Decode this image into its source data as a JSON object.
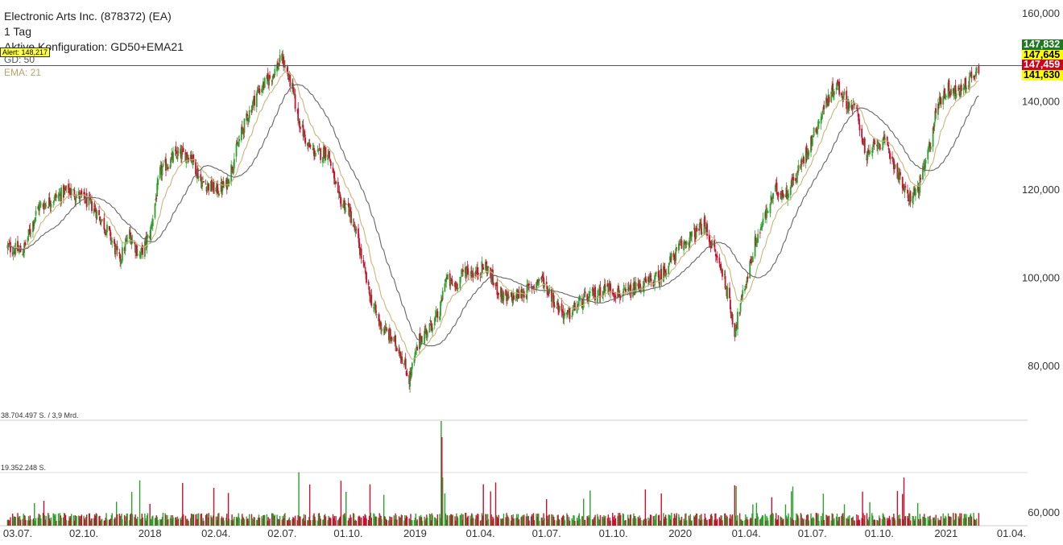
{
  "header": {
    "title": "Electronic Arts Inc. (878372) (EA)",
    "interval": "1 Tag",
    "config": "Aktive Konfiguration: GD50+EMA21",
    "gd_label": "GD: 50",
    "ema_label": "EMA: 21"
  },
  "alert": {
    "label": "Alert: 148,217",
    "value": 148.217
  },
  "price_tags": [
    {
      "label": "147,832",
      "value": 147.832,
      "bg": "#1f7a1f",
      "fg": "#ffffff"
    },
    {
      "label": "147,645",
      "value": 147.645,
      "bg": "#ffff00",
      "fg": "#000000"
    },
    {
      "label": "147,459",
      "value": 147.459,
      "bg": "#d0021b",
      "fg": "#ffffff"
    },
    {
      "label": "141,630",
      "value": 141.63,
      "bg": "#ffff00",
      "fg": "#000000"
    }
  ],
  "volume_labels": {
    "max": "38.704.497 S. / 3,9 Mrd.",
    "mid": "19.352.248 S."
  },
  "colors": {
    "up": "#2ca02c",
    "down": "#c8102e",
    "gd50": "#666666",
    "ema21": "#c8b57c",
    "grid": "#dddddd"
  },
  "chart_data": {
    "type": "candlestick",
    "y_ticks": [
      "160,000",
      "140,000",
      "120,000",
      "100,000",
      "80,000",
      "60,000"
    ],
    "y_tick_values": [
      160,
      140,
      120,
      100,
      80,
      60
    ],
    "x_ticks": [
      "03.07.",
      "02.10.",
      "2018",
      "02.04.",
      "02.07.",
      "01.10.",
      "2019",
      "01.04.",
      "01.07.",
      "01.10.",
      "2020",
      "01.04.",
      "01.07.",
      "01.10.",
      "2021",
      "01.04."
    ],
    "x_tick_dates": [
      "2017-07-03",
      "2017-10-02",
      "2018-01-01",
      "2018-04-02",
      "2018-07-02",
      "2018-10-01",
      "2019-01-01",
      "2019-04-01",
      "2019-07-01",
      "2019-10-01",
      "2020-01-01",
      "2020-04-01",
      "2020-07-01",
      "2020-10-01",
      "2021-01-01",
      "2021-04-01"
    ],
    "price_range": [
      70,
      160
    ],
    "close_path": [
      [
        "2017-06-19",
        107
      ],
      [
        "2017-07-10",
        106
      ],
      [
        "2017-07-31",
        116
      ],
      [
        "2017-08-21",
        118
      ],
      [
        "2017-09-11",
        120
      ],
      [
        "2017-10-02",
        118
      ],
      [
        "2017-10-16",
        116
      ],
      [
        "2017-11-06",
        110
      ],
      [
        "2017-11-20",
        104
      ],
      [
        "2017-12-04",
        110
      ],
      [
        "2017-12-18",
        105
      ],
      [
        "2018-01-01",
        110
      ],
      [
        "2018-01-15",
        124
      ],
      [
        "2018-02-05",
        128
      ],
      [
        "2018-02-26",
        128
      ],
      [
        "2018-03-12",
        122
      ],
      [
        "2018-04-02",
        120
      ],
      [
        "2018-04-16",
        121
      ],
      [
        "2018-05-07",
        133
      ],
      [
        "2018-05-28",
        142
      ],
      [
        "2018-06-18",
        146
      ],
      [
        "2018-07-02",
        150
      ],
      [
        "2018-07-16",
        143
      ],
      [
        "2018-07-23",
        137
      ],
      [
        "2018-08-06",
        130
      ],
      [
        "2018-08-20",
        128
      ],
      [
        "2018-09-03",
        129
      ],
      [
        "2018-09-17",
        118
      ],
      [
        "2018-10-01",
        116
      ],
      [
        "2018-10-15",
        108
      ],
      [
        "2018-10-29",
        97
      ],
      [
        "2018-11-12",
        90
      ],
      [
        "2018-11-26",
        87
      ],
      [
        "2018-12-10",
        84
      ],
      [
        "2018-12-24",
        77
      ],
      [
        "2019-01-07",
        86
      ],
      [
        "2019-01-21",
        89
      ],
      [
        "2019-02-04",
        92
      ],
      [
        "2019-02-11",
        100
      ],
      [
        "2019-02-25",
        98
      ],
      [
        "2019-03-11",
        102
      ],
      [
        "2019-03-25",
        101
      ],
      [
        "2019-04-08",
        103
      ],
      [
        "2019-04-22",
        98
      ],
      [
        "2019-05-06",
        95
      ],
      [
        "2019-05-20",
        96
      ],
      [
        "2019-06-03",
        97
      ],
      [
        "2019-06-24",
        100
      ],
      [
        "2019-07-15",
        94
      ],
      [
        "2019-07-29",
        91
      ],
      [
        "2019-08-12",
        94
      ],
      [
        "2019-09-02",
        96
      ],
      [
        "2019-09-23",
        98
      ],
      [
        "2019-10-14",
        96
      ],
      [
        "2019-11-04",
        98
      ],
      [
        "2019-12-02",
        100
      ],
      [
        "2020-01-01",
        107
      ],
      [
        "2020-01-20",
        110
      ],
      [
        "2020-02-03",
        112
      ],
      [
        "2020-02-17",
        106
      ],
      [
        "2020-03-02",
        100
      ],
      [
        "2020-03-16",
        88
      ],
      [
        "2020-03-30",
        98
      ],
      [
        "2020-04-13",
        108
      ],
      [
        "2020-04-27",
        114
      ],
      [
        "2020-05-11",
        120
      ],
      [
        "2020-05-25",
        119
      ],
      [
        "2020-06-08",
        123
      ],
      [
        "2020-06-29",
        131
      ],
      [
        "2020-07-20",
        140
      ],
      [
        "2020-08-03",
        144
      ],
      [
        "2020-08-17",
        140
      ],
      [
        "2020-08-31",
        138
      ],
      [
        "2020-09-14",
        127
      ],
      [
        "2020-09-28",
        131
      ],
      [
        "2020-10-12",
        130
      ],
      [
        "2020-10-26",
        124
      ],
      [
        "2020-11-09",
        118
      ],
      [
        "2020-11-23",
        120
      ],
      [
        "2020-12-07",
        128
      ],
      [
        "2020-12-21",
        140
      ],
      [
        "2021-01-04",
        143
      ],
      [
        "2021-01-18",
        142
      ],
      [
        "2021-02-01",
        145
      ],
      [
        "2021-02-15",
        147.6
      ]
    ]
  }
}
